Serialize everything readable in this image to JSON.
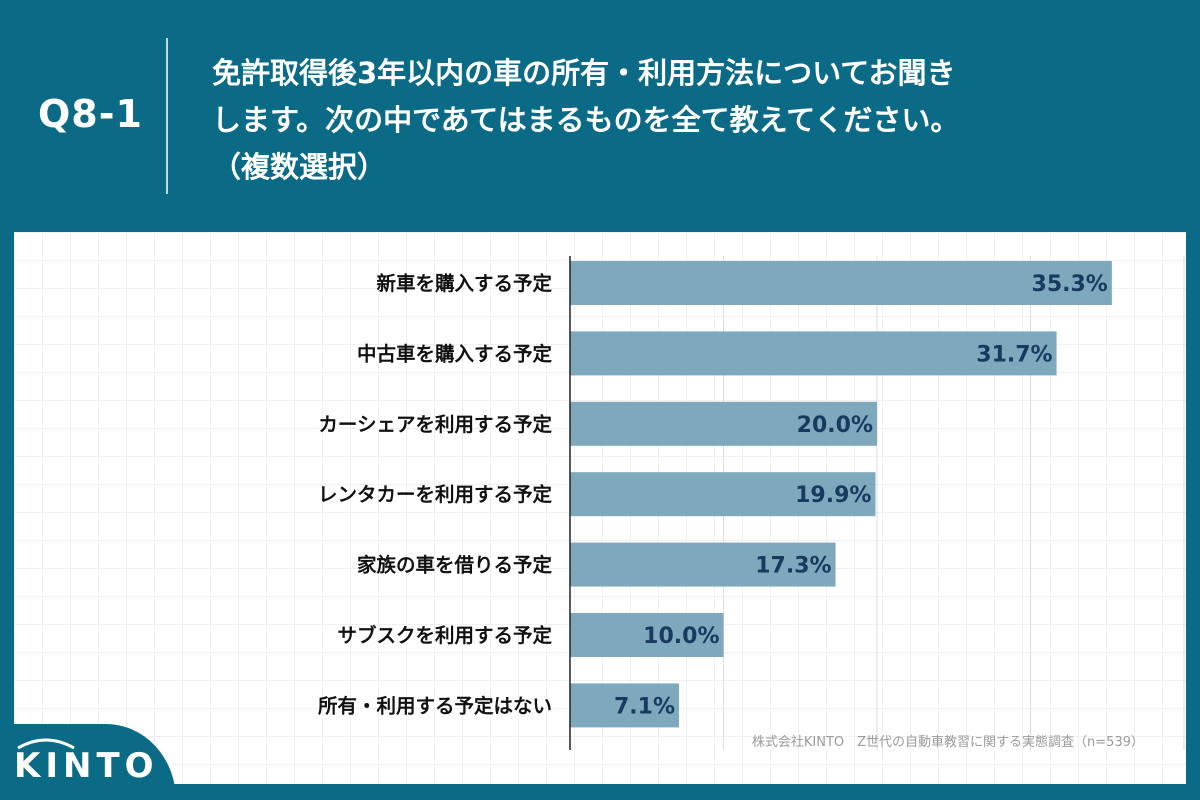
{
  "header": {
    "question_number": "Q8-1",
    "question_lines": [
      "免許取得後3年以内の車の所有・利用方法についてお聞き",
      "します。次の中であてはまるものを全て教えてください。",
      "（複数選択）"
    ]
  },
  "footer": {
    "source": "株式会社KINTO　Z世代の自動車教習に関する実態調査（n=539）",
    "logo": "KINTO"
  },
  "colors": {
    "background": "#0b6a86",
    "bar": "#7ea9bd",
    "value_text": "#173a5e"
  },
  "chart_data": {
    "type": "bar",
    "orientation": "horizontal",
    "title": "",
    "xlabel": "",
    "ylabel": "",
    "xlim": [
      0,
      50
    ],
    "grid": true,
    "unit": "%",
    "categories": [
      "新車を購入する予定",
      "中古車を購入する予定",
      "カーシェアを利用する予定",
      "レンタカーを利用する予定",
      "家族の車を借りる予定",
      "サブスクを利用する予定",
      "所有・利用する予定はない"
    ],
    "values": [
      35.3,
      31.7,
      20.0,
      19.9,
      17.3,
      10.0,
      7.1
    ],
    "value_labels": [
      "35.3%",
      "31.7%",
      "20.0%",
      "19.9%",
      "17.3%",
      "10.0%",
      "7.1%"
    ]
  }
}
